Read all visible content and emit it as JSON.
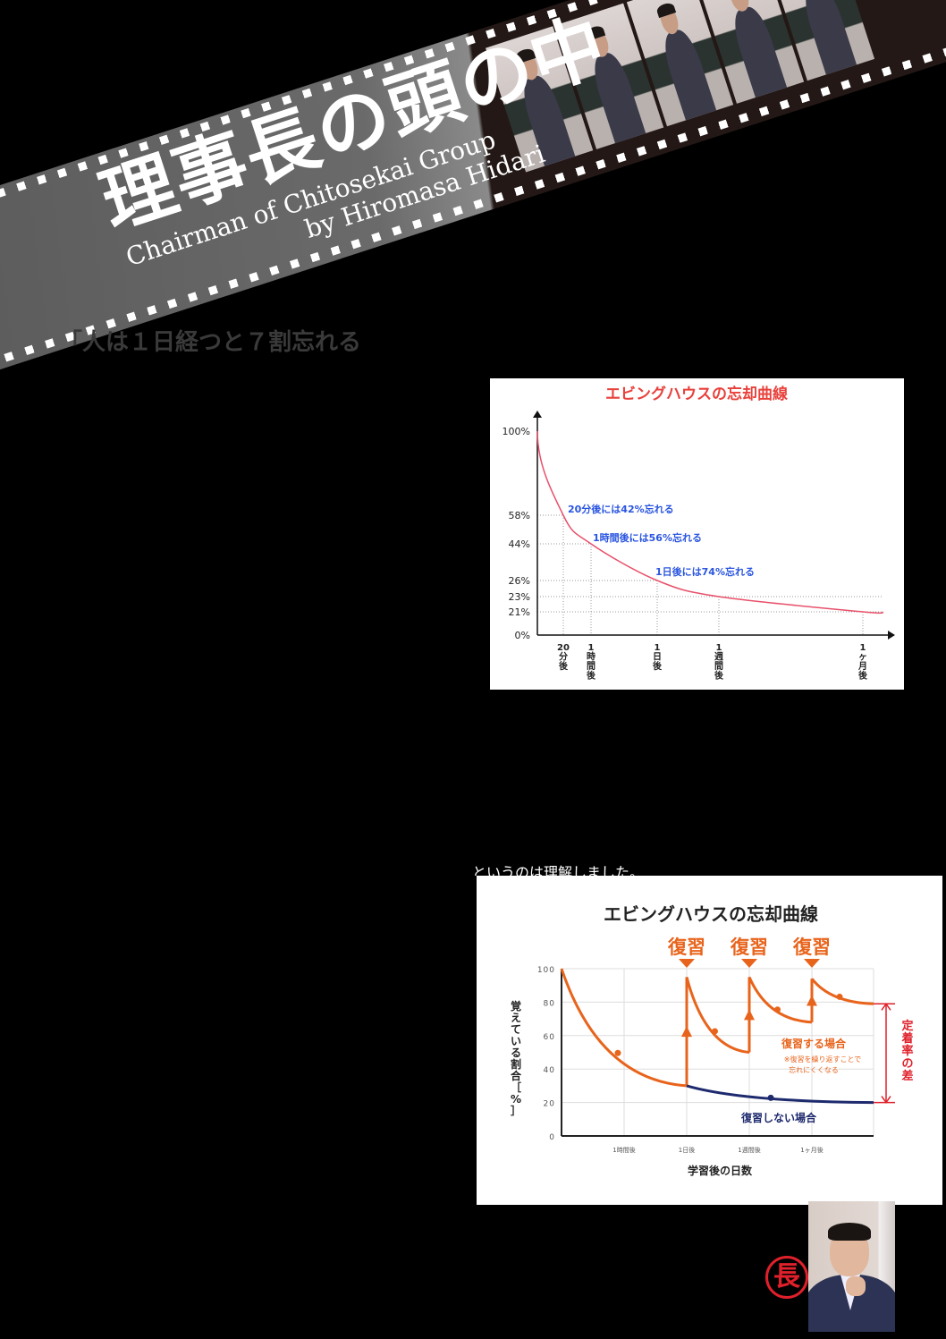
{
  "banner": {
    "title": "理事長の頭の中",
    "subtitle_line1": "Chairman of Chitosekai Group",
    "subtitle_line2": "by Hiromasa Hidari"
  },
  "heading": "「人は１日経つと７割忘れる",
  "cut_text": "というのは理解しました。",
  "exclamation": "!",
  "stamp_text": "長",
  "colors": {
    "background": "#000000",
    "curve1": "#e8506a",
    "annotation1": "#2a55e0",
    "title1": "#e8413c",
    "review": "#e8641c",
    "no_review": "#1e2a6e",
    "gap": "#e0202a"
  },
  "chart_data": [
    {
      "type": "line",
      "title": "エビングハウスの忘却曲線",
      "x_ticks": [
        "20分後",
        "1時間後",
        "1日後",
        "1週間後",
        "1ヶ月後"
      ],
      "x_tick_lines": [
        [
          "20",
          "分",
          "後"
        ],
        [
          "1",
          "時",
          "間",
          "後"
        ],
        [
          "1",
          "日",
          "後"
        ],
        [
          "1",
          "週",
          "間",
          "後"
        ],
        [
          "1",
          "ヶ",
          "月",
          "後"
        ]
      ],
      "y_ticks": [
        "100%",
        "58%",
        "44%",
        "26%",
        "23%",
        "21%",
        "0%"
      ],
      "points": [
        {
          "x": "",
          "y": 100
        },
        {
          "x": "20分後",
          "y": 58
        },
        {
          "x": "1時間後",
          "y": 44
        },
        {
          "x": "1日後",
          "y": 26
        },
        {
          "x": "1週間後",
          "y": 23
        },
        {
          "x": "1ヶ月後",
          "y": 21
        }
      ],
      "annotations": [
        "20分後には42%忘れる",
        "1時間後には56%忘れる",
        "1日後には74%忘れる"
      ],
      "grid": "dotted reference lines"
    },
    {
      "type": "line",
      "title": "エビングハウスの忘却曲線",
      "xlabel": "学習後の日数",
      "ylabel": "覚えている割合［%］",
      "ylim": [
        0,
        100
      ],
      "y_ticks": [
        0,
        20,
        40,
        60,
        80,
        100
      ],
      "x_ticks": [
        "1時間後",
        "1日後",
        "1週間後",
        "1ヶ月後"
      ],
      "review_markers": [
        "復習",
        "復習",
        "復習"
      ],
      "series": [
        {
          "name": "復習する場合",
          "note": [
            "※復習を繰り返すことで",
            "忘れにくくなる"
          ],
          "segments": [
            {
              "from": "",
              "to": "1日後",
              "start": 100,
              "end": 30
            },
            {
              "from": "1日後",
              "to": "1週間後",
              "start": 95,
              "end": 50
            },
            {
              "from": "1週間後",
              "to": "1ヶ月後",
              "start": 95,
              "end": 68
            },
            {
              "from": "1ヶ月後",
              "to": "",
              "start": 94,
              "end": 79
            }
          ]
        },
        {
          "name": "復習しない場合",
          "segments": [
            {
              "from": "1日後",
              "to": "",
              "start": 30,
              "end": 20
            }
          ]
        }
      ],
      "gap_label": "定着率の差",
      "grid": true
    }
  ]
}
